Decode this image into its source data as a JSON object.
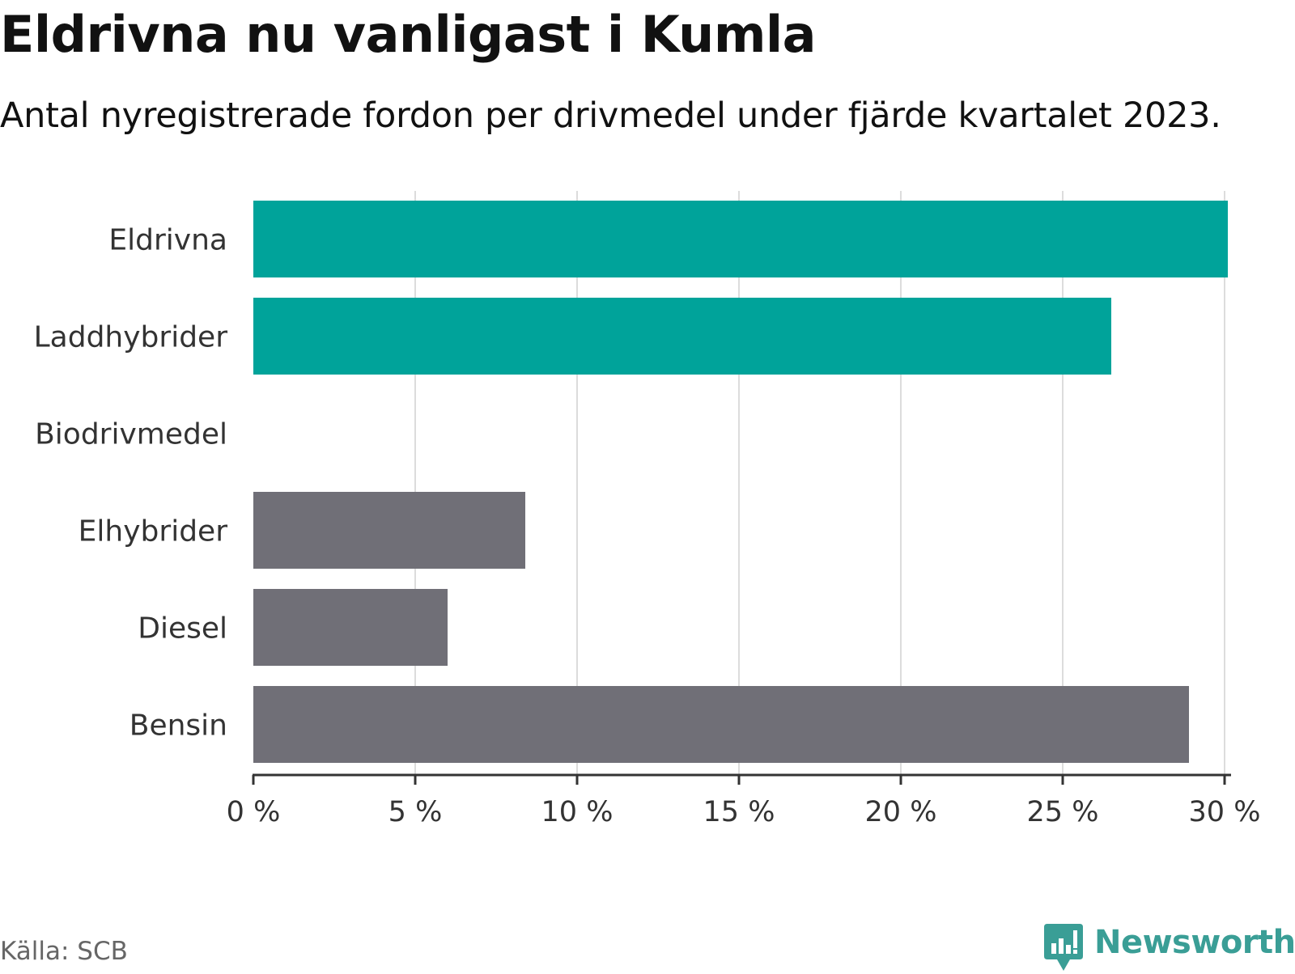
{
  "chart_data": {
    "type": "bar",
    "orientation": "horizontal",
    "title": "Eldrivna nu vanligast i Kumla",
    "subtitle": "Antal nyregistrerade fordon per drivmedel under fjärde kvartalet 2023.",
    "categories": [
      "Eldrivna",
      "Laddhybrider",
      "Biodrivmedel",
      "Elhybrider",
      "Diesel",
      "Bensin"
    ],
    "values": [
      30.1,
      26.5,
      0,
      8.4,
      6.0,
      28.9
    ],
    "colors": [
      "#00a39a",
      "#00a39a",
      "#00a39a",
      "#706f77",
      "#706f77",
      "#706f77"
    ],
    "xlim": [
      0,
      30
    ],
    "xticks": [
      0,
      5,
      10,
      15,
      20,
      25,
      30
    ],
    "xtick_labels": [
      "0 %",
      "5 %",
      "10 %",
      "15 %",
      "20 %",
      "25 %",
      "30 %"
    ],
    "xlabel": "",
    "ylabel": "",
    "grid": true
  },
  "footer": {
    "source": "Källa: SCB",
    "brand": "Newsworthy",
    "brand_color": "#3a9e96"
  }
}
